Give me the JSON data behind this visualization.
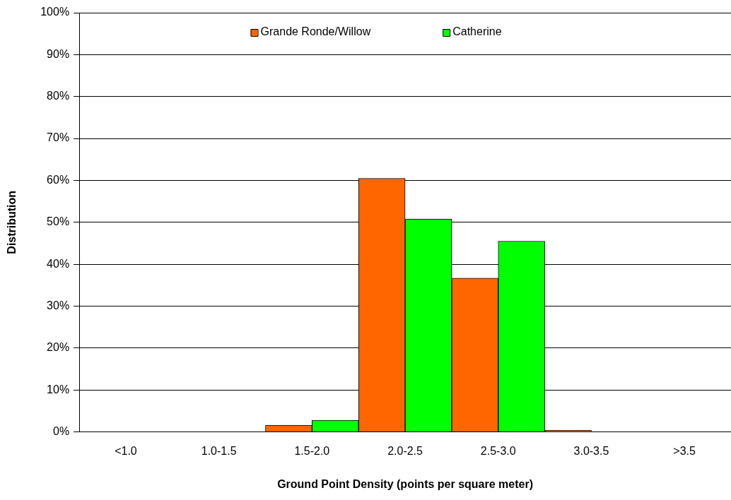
{
  "chart_data": {
    "type": "bar",
    "xlabel": "Ground Point Density (points per square meter)",
    "ylabel": "Distribution",
    "categories": [
      "<1.0",
      "1.0-1.5",
      "1.5-2.0",
      "2.0-2.5",
      "2.5-3.0",
      "3.0-3.5",
      ">3.5"
    ],
    "series": [
      {
        "name": "Grande Ronde/Willow",
        "color": "#ff6600",
        "values": [
          0,
          0,
          1.6,
          60.5,
          36.7,
          0.4,
          0
        ]
      },
      {
        "name": "Catherine",
        "color": "#00ff00",
        "values": [
          0,
          0,
          2.8,
          50.8,
          45.5,
          0,
          0
        ]
      }
    ],
    "ylim": [
      0,
      100
    ],
    "yticks": [
      {
        "value": 0,
        "label": "0%"
      },
      {
        "value": 10,
        "label": "10%"
      },
      {
        "value": 20,
        "label": "20%"
      },
      {
        "value": 30,
        "label": "30%"
      },
      {
        "value": 40,
        "label": "40%"
      },
      {
        "value": 50,
        "label": "50%"
      },
      {
        "value": 60,
        "label": "60%"
      },
      {
        "value": 70,
        "label": "70%"
      },
      {
        "value": 80,
        "label": "80%"
      },
      {
        "value": 90,
        "label": "90%"
      },
      {
        "value": 100,
        "label": "100%"
      }
    ],
    "grid": "y",
    "legend": "top"
  }
}
